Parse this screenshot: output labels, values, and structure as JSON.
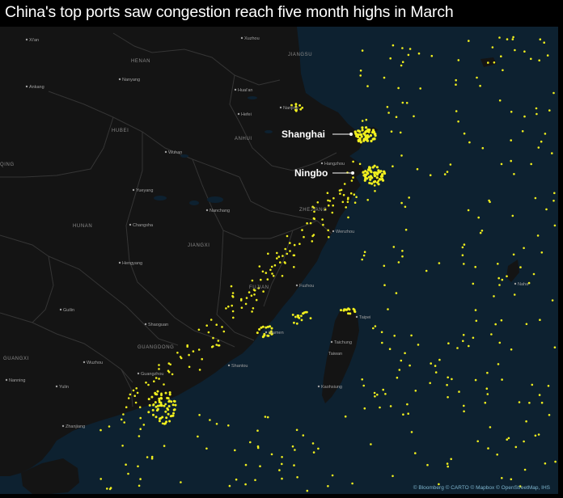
{
  "title": "China's top ports saw congestion reach five month highs in March",
  "colors": {
    "land": "#141414",
    "sea": "#0d2130",
    "ship": "#f0ef1e",
    "province_border": "#353535",
    "label": "#9a9a9a",
    "callout": "#ffffff",
    "attribution": "#7fb6cf"
  },
  "callouts": {
    "shanghai": "Shanghai",
    "ningbo": "Ningbo"
  },
  "provinces": {
    "henan": "HENAN",
    "jiangsu": "JIANGSU",
    "hubei": "HUBEI",
    "anhui": "ANHUI",
    "qing": "QING",
    "zhejiang": "ZHEJIANG",
    "hunan": "HUNAN",
    "jiangxi": "JIANGXI",
    "fujian": "FUJIAN",
    "guangdong": "GUANGDONG",
    "guangxi": "GUANGXI"
  },
  "cities": {
    "xian": "Xi'an",
    "xuzhou": "Xuzhou",
    "nanyang": "Nanyang",
    "ankang": "Ankang",
    "huaian": "Huai'an",
    "hefei": "Hefei",
    "nanjing": "Nanjing",
    "wuhan": "Wuhan",
    "hangzhou": "Hangzhou",
    "yueyang": "Yueyang",
    "nanchang": "Nanchang",
    "changsha": "Changsha",
    "wenzhou": "Wenzhou",
    "hengyang": "Hengyang",
    "fuzhou": "Fuzhou",
    "naha": "Naha",
    "guilin": "Guilin",
    "shaoguan": "Shaoguan",
    "taipei": "Taipei",
    "xiamen": "Xiamen",
    "taichung": "Taichung",
    "taiwan": "Taiwan",
    "wuzhou": "Wuzhou",
    "shantou": "Shantou",
    "guangzhou": "Guangzhou",
    "nanning": "Nanning",
    "yulin": "Yulin",
    "kaohsiung": "Kaohsiung",
    "zhanjiang": "Zhanjiang"
  },
  "attribution": "© Bloomberg © CARTO © Mapbox © OpenStreetMap, IHS"
}
